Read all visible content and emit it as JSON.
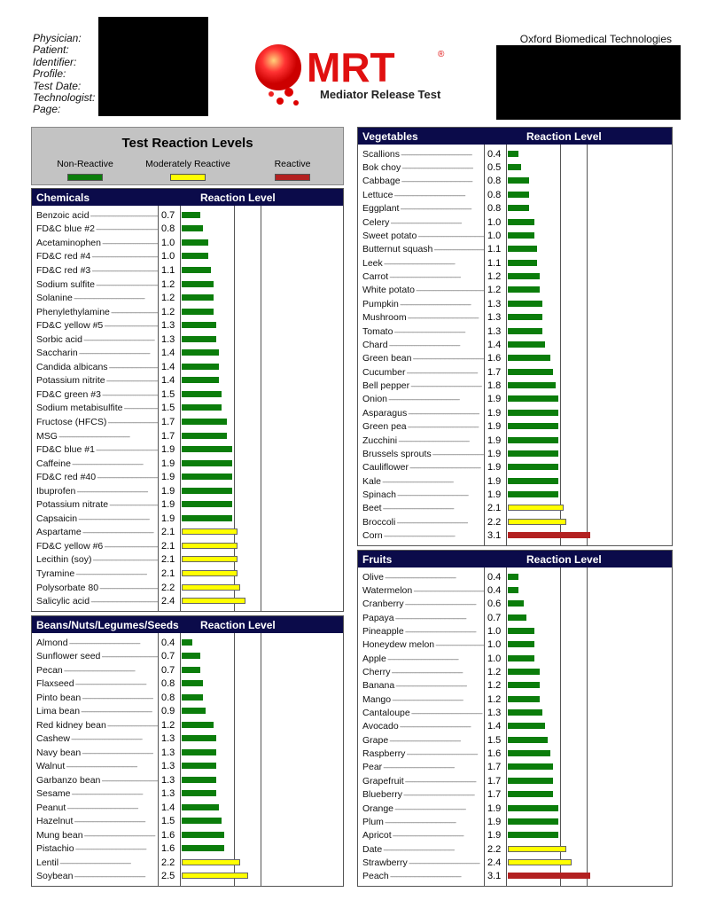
{
  "header": {
    "labels": [
      "Physician:",
      "Patient:",
      "Identifier:",
      "Profile:",
      "Test Date:",
      "Technologist:",
      "Page:"
    ],
    "organization": "Oxford Biomedical Technologies",
    "logo": {
      "name": "MRT",
      "registered": "®",
      "tagline": "Mediator Release Test"
    }
  },
  "legend": {
    "title": "Test Reaction Levels",
    "items": [
      {
        "label": "Non-Reactive",
        "color": "#0b7d0b"
      },
      {
        "label": "Moderately Reactive",
        "color": "#ffff00"
      },
      {
        "label": "Reactive",
        "color": "#b32121"
      }
    ]
  },
  "column_header": "Reaction Level",
  "panels": [
    {
      "id": "chemicals",
      "title": "Chemicals",
      "items": [
        [
          "Benzoic acid",
          0.7
        ],
        [
          "FD&C blue #2",
          0.8
        ],
        [
          "Acetaminophen",
          1.0
        ],
        [
          "FD&C red #4",
          1.0
        ],
        [
          "FD&C red #3",
          1.1
        ],
        [
          "Sodium sulfite",
          1.2
        ],
        [
          "Solanine",
          1.2
        ],
        [
          "Phenylethylamine",
          1.2
        ],
        [
          "FD&C yellow #5",
          1.3
        ],
        [
          "Sorbic acid",
          1.3
        ],
        [
          "Saccharin",
          1.4
        ],
        [
          "Candida albicans",
          1.4
        ],
        [
          "Potassium nitrite",
          1.4
        ],
        [
          "FD&C green #3",
          1.5
        ],
        [
          "Sodium metabisulfite",
          1.5
        ],
        [
          "Fructose (HFCS)",
          1.7
        ],
        [
          "MSG",
          1.7
        ],
        [
          "FD&C blue #1",
          1.9
        ],
        [
          "Caffeine",
          1.9
        ],
        [
          "FD&C red #40",
          1.9
        ],
        [
          "Ibuprofen",
          1.9
        ],
        [
          "Potassium nitrate",
          1.9
        ],
        [
          "Capsaicin",
          1.9
        ],
        [
          "Aspartame",
          2.1
        ],
        [
          "FD&C yellow #6",
          2.1
        ],
        [
          "Lecithin (soy)",
          2.1
        ],
        [
          "Tyramine",
          2.1
        ],
        [
          "Polysorbate 80",
          2.2
        ],
        [
          "Salicylic acid",
          2.4
        ]
      ]
    },
    {
      "id": "beans",
      "title": "Beans/Nuts/Legumes/Seeds",
      "items": [
        [
          "Almond",
          0.4
        ],
        [
          "Sunflower seed",
          0.7
        ],
        [
          "Pecan",
          0.7
        ],
        [
          "Flaxseed",
          0.8
        ],
        [
          "Pinto bean",
          0.8
        ],
        [
          "Lima bean",
          0.9
        ],
        [
          "Red kidney bean",
          1.2
        ],
        [
          "Cashew",
          1.3
        ],
        [
          "Navy bean",
          1.3
        ],
        [
          "Walnut",
          1.3
        ],
        [
          "Garbanzo bean",
          1.3
        ],
        [
          "Sesame",
          1.3
        ],
        [
          "Peanut",
          1.4
        ],
        [
          "Hazelnut",
          1.5
        ],
        [
          "Mung bean",
          1.6
        ],
        [
          "Pistachio",
          1.6
        ],
        [
          "Lentil",
          2.2
        ],
        [
          "Soybean",
          2.5
        ]
      ]
    },
    {
      "id": "vegetables",
      "title": "Vegetables",
      "items": [
        [
          "Scallions",
          0.4
        ],
        [
          "Bok choy",
          0.5
        ],
        [
          "Cabbage",
          0.8
        ],
        [
          "Lettuce",
          0.8
        ],
        [
          "Eggplant",
          0.8
        ],
        [
          "Celery",
          1.0
        ],
        [
          "Sweet potato",
          1.0
        ],
        [
          "Butternut squash",
          1.1
        ],
        [
          "Leek",
          1.1
        ],
        [
          "Carrot",
          1.2
        ],
        [
          "White potato",
          1.2
        ],
        [
          "Pumpkin",
          1.3
        ],
        [
          "Mushroom",
          1.3
        ],
        [
          "Tomato",
          1.3
        ],
        [
          "Chard",
          1.4
        ],
        [
          "Green bean",
          1.6
        ],
        [
          "Cucumber",
          1.7
        ],
        [
          "Bell pepper",
          1.8
        ],
        [
          "Onion",
          1.9
        ],
        [
          "Asparagus",
          1.9
        ],
        [
          "Green pea",
          1.9
        ],
        [
          "Zucchini",
          1.9
        ],
        [
          "Brussels sprouts",
          1.9
        ],
        [
          "Cauliflower",
          1.9
        ],
        [
          "Kale",
          1.9
        ],
        [
          "Spinach",
          1.9
        ],
        [
          "Beet",
          2.1
        ],
        [
          "Broccoli",
          2.2
        ],
        [
          "Corn",
          3.1
        ]
      ]
    },
    {
      "id": "fruits",
      "title": "Fruits",
      "items": [
        [
          "Olive",
          0.4
        ],
        [
          "Watermelon",
          0.4
        ],
        [
          "Cranberry",
          0.6
        ],
        [
          "Papaya",
          0.7
        ],
        [
          "Pineapple",
          1.0
        ],
        [
          "Honeydew melon",
          1.0
        ],
        [
          "Apple",
          1.0
        ],
        [
          "Cherry",
          1.2
        ],
        [
          "Banana",
          1.2
        ],
        [
          "Mango",
          1.2
        ],
        [
          "Cantaloupe",
          1.3
        ],
        [
          "Avocado",
          1.4
        ],
        [
          "Grape",
          1.5
        ],
        [
          "Raspberry",
          1.6
        ],
        [
          "Pear",
          1.7
        ],
        [
          "Grapefruit",
          1.7
        ],
        [
          "Blueberry",
          1.7
        ],
        [
          "Orange",
          1.9
        ],
        [
          "Plum",
          1.9
        ],
        [
          "Apricot",
          1.9
        ],
        [
          "Date",
          2.2
        ],
        [
          "Strawberry",
          2.4
        ],
        [
          "Peach",
          3.1
        ]
      ]
    }
  ]
}
